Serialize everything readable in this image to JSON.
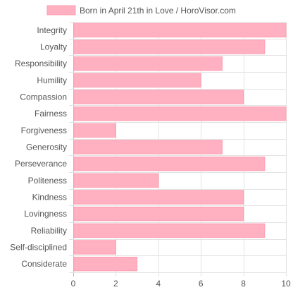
{
  "chart_data": {
    "type": "bar",
    "orientation": "horizontal",
    "categories": [
      "Integrity",
      "Loyalty",
      "Responsibility",
      "Humility",
      "Compassion",
      "Fairness",
      "Forgiveness",
      "Generosity",
      "Perseverance",
      "Politeness",
      "Kindness",
      "Lovingness",
      "Reliability",
      "Self-disciplined",
      "Considerate"
    ],
    "series": [
      {
        "name": "Born in April 21th in Love / HoroVisor.com",
        "values": [
          10,
          9,
          7,
          6,
          8,
          10,
          2,
          7,
          9,
          4,
          8,
          8,
          9,
          2,
          3
        ],
        "color": "#ffb1c1",
        "border_color": "#ff9db1"
      }
    ],
    "xlim": [
      0,
      10
    ],
    "x_ticks": [
      0,
      2,
      4,
      6,
      8,
      10
    ],
    "grid": true,
    "legend_position": "top-center",
    "title": "",
    "xlabel": "",
    "ylabel": ""
  }
}
